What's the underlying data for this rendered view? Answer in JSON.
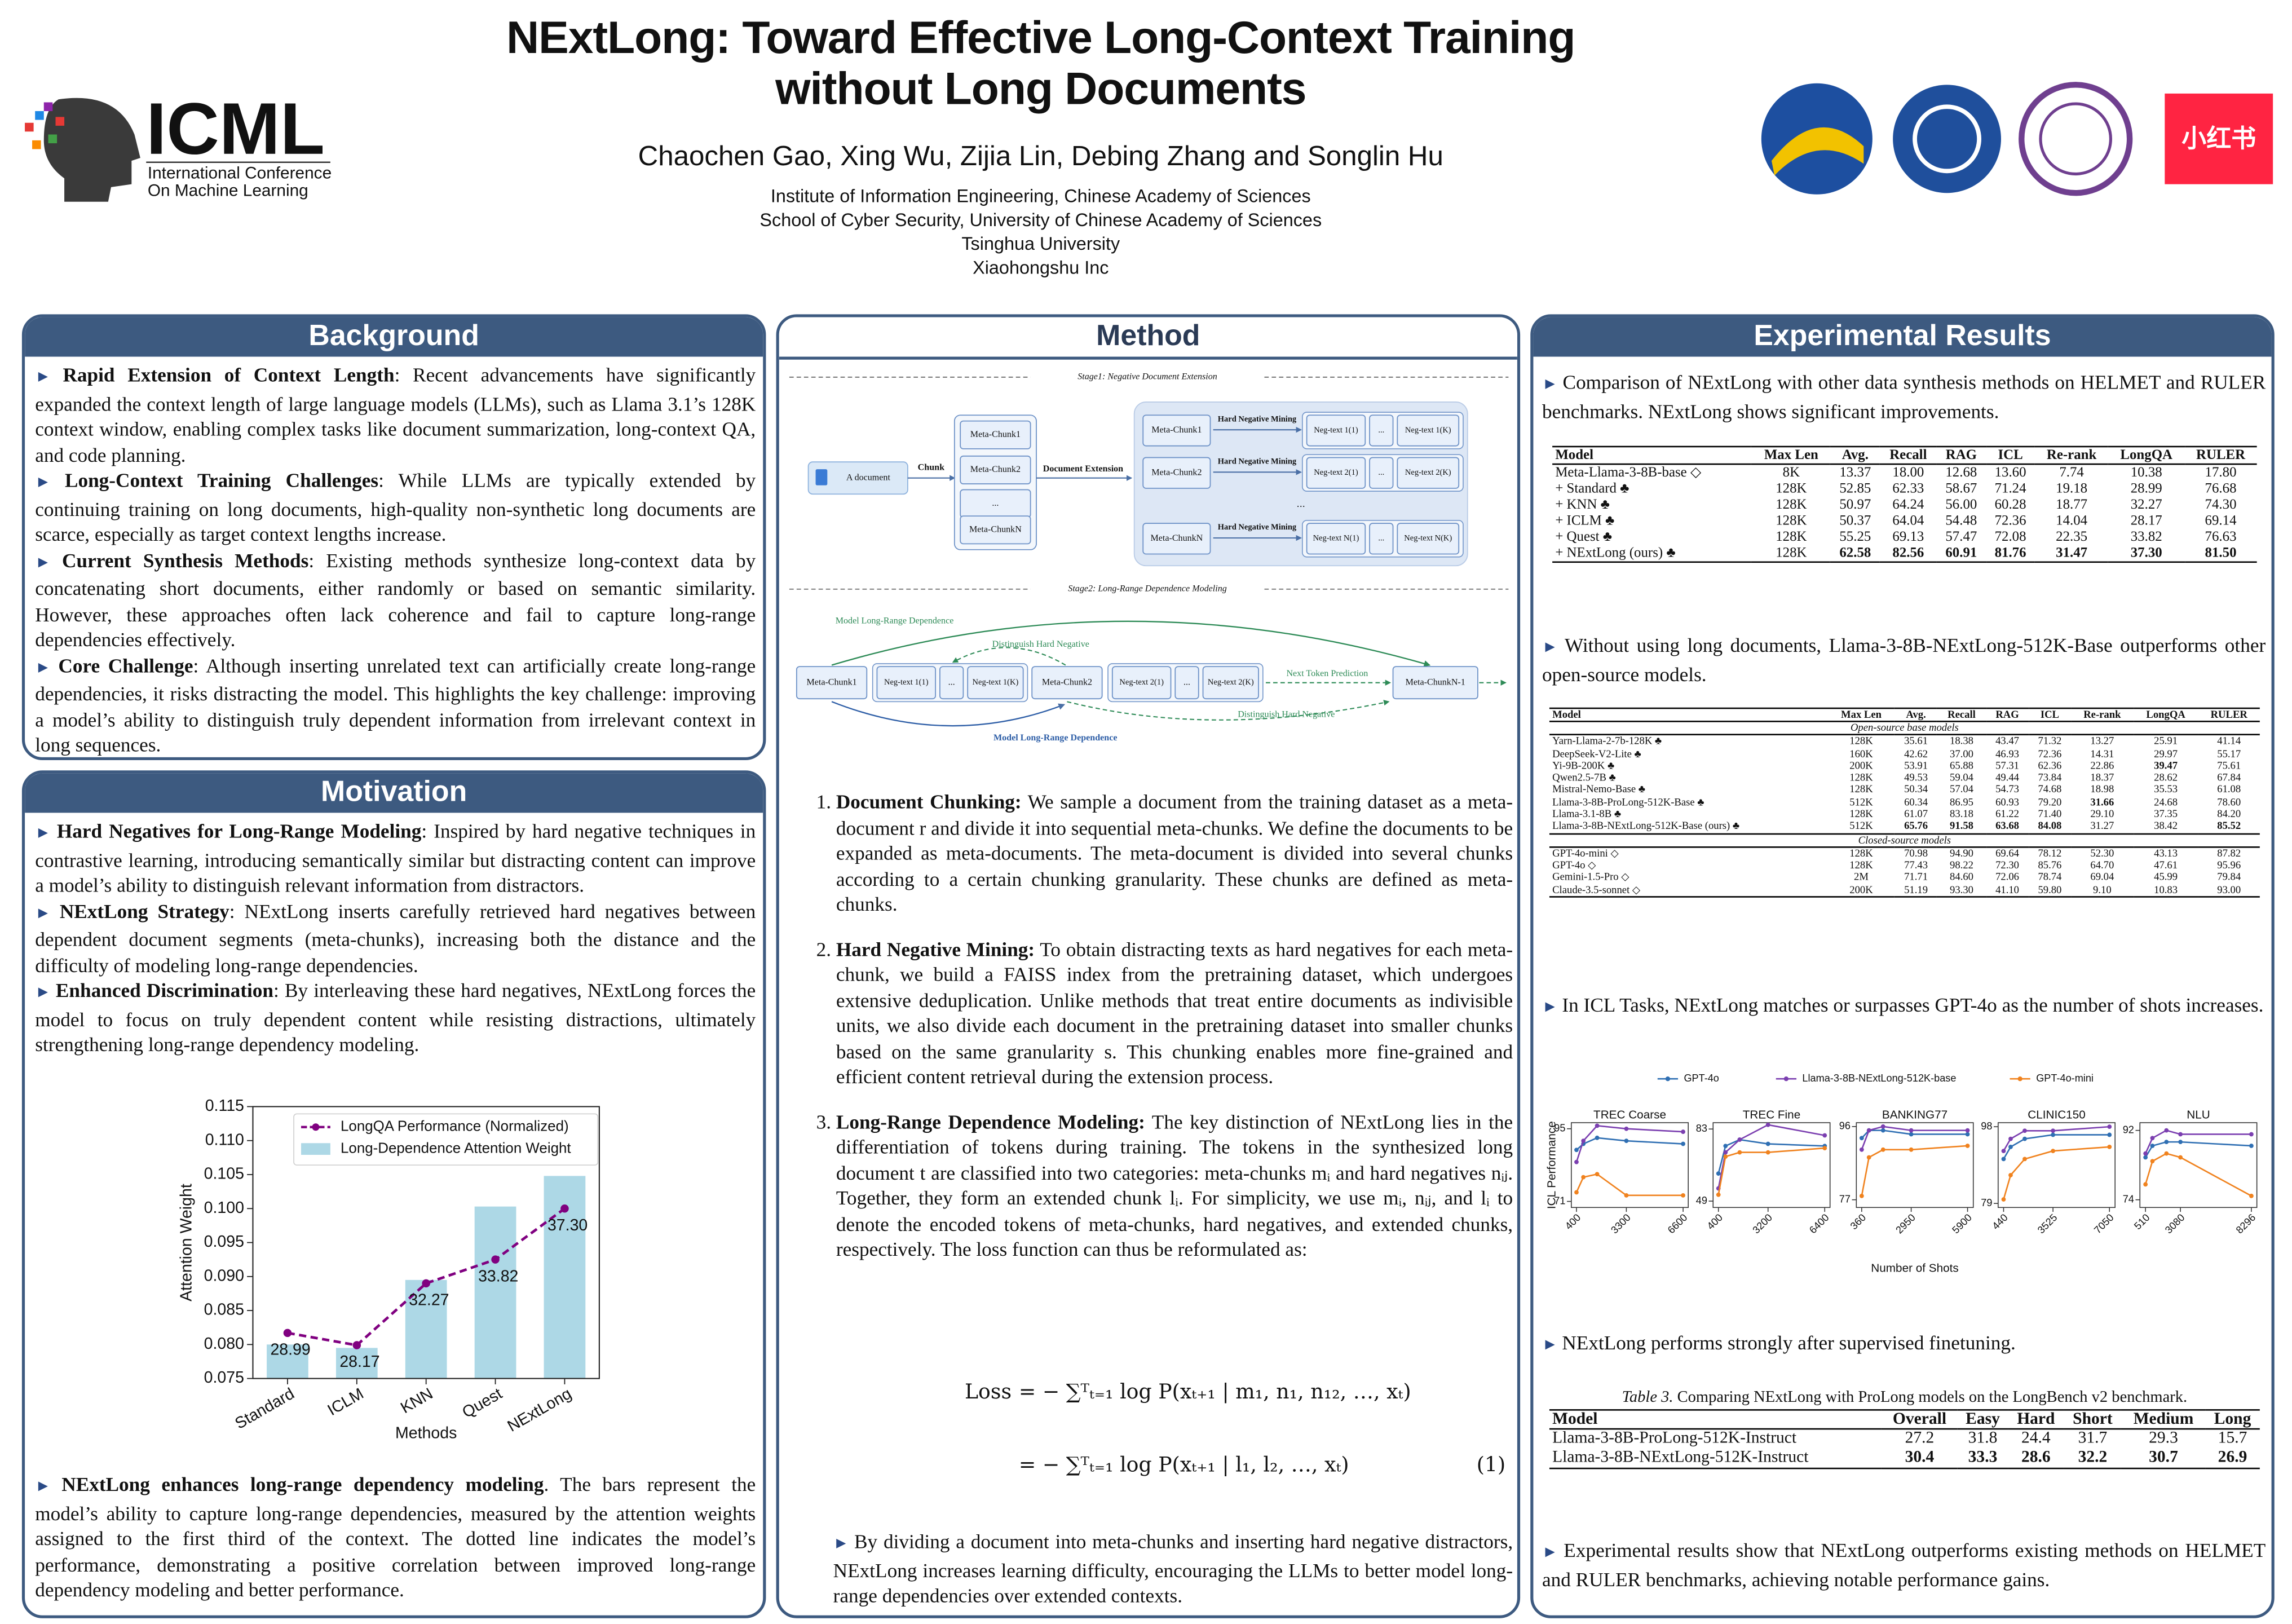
{
  "header": {
    "title_lines": [
      "NExtLong: Toward Effective Long-Context Training",
      "without Long Documents"
    ],
    "authors": "Chaochen Gao, Xing Wu, Zijia Lin, Debing Zhang and Songlin Hu",
    "affiliations": [
      "Institute of Information Engineering, Chinese Academy of Sciences",
      "School of Cyber Security, University of Chinese Academy of Sciences",
      "Tsinghua University",
      "Xiaohongshu Inc"
    ],
    "icml": {
      "name": "ICML",
      "subtitle_lines": [
        "International Conference",
        "On Machine Learning"
      ]
    },
    "logo_text": "小红书"
  },
  "background": {
    "title": "Background",
    "items": [
      {
        "lead": "Rapid Extension of Context Length",
        "text": ": Recent advancements have significantly expanded the context length of large language models (LLMs), such as Llama 3.1’s 128K context window, enabling complex tasks like document summarization, long-context QA, and code planning."
      },
      {
        "lead": "Long-Context Training Challenges",
        "text": ": While LLMs are typically extended by continuing training on long documents, high-quality non-synthetic long documents are scarce, especially as target context lengths increase."
      },
      {
        "lead": "Current Synthesis Methods",
        "text": ": Existing methods synthesize long-context data by concatenating short documents, either randomly or based on semantic similarity. However, these approaches often lack coherence and fail to capture long-range dependencies effectively."
      },
      {
        "lead": "Core Challenge",
        "text": ": Although inserting unrelated text can artificially create long-range dependencies, it risks distracting the model. This highlights the key challenge: improving a model’s ability to distinguish truly dependent information from irrelevant context in long sequences."
      }
    ]
  },
  "motivation": {
    "title": "Motivation",
    "items": [
      {
        "lead": "Hard Negatives for Long-Range Modeling",
        "text": ": Inspired by hard negative techniques in contrastive learning, introducing semantically similar but distracting content can improve a model’s ability to distinguish relevant information from distractors."
      },
      {
        "lead": "NExtLong Strategy",
        "text": ": NExtLong inserts carefully retrieved hard negatives between dependent document segments (meta-chunks), increasing both the distance and the difficulty of modeling long-range dependencies."
      },
      {
        "lead": "Enhanced Discrimination",
        "text": ": By interleaving these hard negatives, NExtLong forces the model to focus on truly dependent content while resisting distractions, ultimately strengthening long-range dependency modeling."
      }
    ],
    "closing": {
      "lead": "NExtLong enhances long-range dependency modeling",
      "text": ". The bars represent the model’s ability to capture long-range dependencies, measured by the attention weights assigned to the first third of the context. The dotted line indicates the model’s performance, demonstrating a positive correlation between improved long-range dependency modeling and better performance."
    }
  },
  "method": {
    "title": "Method",
    "figure": {
      "stage1": "Stage1: Negative Document Extension",
      "document": "A document",
      "chunk": "Chunk",
      "meta_chunks": [
        "Meta-Chunk1",
        "Meta-Chunk2",
        "...",
        "Meta-ChunkN"
      ],
      "extension": "Document Extension",
      "rows": [
        {
          "meta": "Meta-Chunk1",
          "mining": "Hard Negative Mining",
          "negs": [
            "Neg-text 1(1)",
            "...",
            "Neg-text 1(K)"
          ]
        },
        {
          "meta": "Meta-Chunk2",
          "mining": "Hard Negative Mining",
          "negs": [
            "Neg-text 2(1)",
            "...",
            "Neg-text 2(K)"
          ]
        },
        {
          "meta": "Meta-ChunkN",
          "mining": "Hard Negative Mining",
          "negs": [
            "Neg-text N(1)",
            "...",
            "Neg-text N(K)"
          ]
        }
      ],
      "rows_ellipsis": "...",
      "stage2": "Stage2: Long-Range Dependence Modeling",
      "sequence": [
        "Meta-Chunk1",
        "Neg-text 1(1)",
        "...",
        "Neg-text 1(K)",
        "Meta-Chunk2",
        "Neg-text 2(1)",
        "...",
        "Neg-text 2(K)",
        "Meta-ChunkN-1"
      ],
      "long_dep_top": "Model Long-Range Dependence",
      "distinguish_top": "Distinguish Hard Negative",
      "next_token": "Next Token Prediction",
      "distinguish_bottom": "Distinguish Hard Negative",
      "long_dep_bottom": "Model Long-Range Dependence"
    },
    "steps": [
      {
        "lead": "Document Chunking:",
        "text": " We sample a document from the training dataset as a meta-document r and divide it into sequential meta-chunks. We define the documents to be expanded as meta-documents. The meta-document is divided into several chunks according to a certain chunking granularity. These chunks are defined as meta-chunks."
      },
      {
        "lead": "Hard Negative Mining:",
        "text": " To obtain distracting texts as hard negatives for each meta-chunk, we build a FAISS index from the pretraining dataset, which undergoes extensive deduplication. Unlike methods that treat entire documents as indivisible units, we also divide each document in the pretraining dataset into smaller chunks based on the same granularity s. This chunking enables more fine-grained and efficient content retrieval during the extension process."
      },
      {
        "lead": "Long-Range Dependence Modeling:",
        "text": " The key distinction of NExtLong lies in the differentiation of tokens during training. The tokens in the synthesized long document t are classified into two categories: meta-chunks mᵢ and hard negatives nᵢⱼ. Together, they form an extended chunk lᵢ. For simplicity, we use mᵢ, nᵢⱼ, and lᵢ to denote the encoded tokens of meta-chunks, hard negatives, and extended chunks, respectively. The loss function can thus be reformulated as:"
      }
    ],
    "equation": {
      "lhs": "Loss",
      "rhs": [
        "= − ∑ᵀₜ₌₁ log P(xₜ₊₁ | m₁, n₁, n₁₂, …, xₜ)",
        "= − ∑ᵀₜ₌₁ log P(xₜ₊₁ | l₁, l₂, …, xₜ)"
      ],
      "number": "(1)"
    },
    "closing": "By dividing a document into meta-chunks and inserting hard negative distractors, NExtLong increases learning difficulty, encouraging the LLMs to better model long-range dependencies over extended contexts."
  },
  "results": {
    "title": "Experimental Results",
    "paragraphs": [
      "Comparison of NExtLong with other data synthesis methods on HELMET and RULER benchmarks. NExtLong shows significant improvements.",
      "Without using long documents, Llama-3-8B-NExtLong-512K-Base outperforms other open-source models.",
      "In ICL Tasks, NExtLong matches or surpasses GPT-4o as the number of shots increases.",
      "NExtLong performs strongly after supervised finetuning.",
      "Experimental results show that NExtLong outperforms existing methods on HELMET and RULER benchmarks, achieving notable performance gains."
    ],
    "table1": {
      "header": [
        "Model",
        "Max Len",
        "Avg.",
        "Recall",
        "RAG",
        "ICL",
        "Re-rank",
        "LongQA",
        "RULER"
      ],
      "rows": [
        [
          "Meta-Llama-3-8B-base ◇",
          "8K",
          "13.37",
          "18.00",
          "12.68",
          "13.60",
          "7.74",
          "10.38",
          "17.80"
        ],
        [
          "+ Standard ♣",
          "128K",
          "52.85",
          "62.33",
          "58.67",
          "71.24",
          "19.18",
          "28.99",
          "76.68"
        ],
        [
          "+ KNN ♣",
          "128K",
          "50.97",
          "64.24",
          "56.00",
          "60.28",
          "18.77",
          "32.27",
          "74.30"
        ],
        [
          "+ ICLM ♣",
          "128K",
          "50.37",
          "64.04",
          "54.48",
          "72.36",
          "14.04",
          "28.17",
          "69.14"
        ],
        [
          "+ Quest ♣",
          "128K",
          "55.25",
          "69.13",
          "57.47",
          "72.08",
          "22.35",
          "33.82",
          "76.63"
        ],
        [
          "+ NExtLong (ours) ♣",
          "128K",
          "62.58",
          "82.56",
          "60.91",
          "81.76",
          "31.47",
          "37.30",
          "81.50"
        ]
      ],
      "bold": [
        [
          5,
          2
        ],
        [
          5,
          3
        ],
        [
          5,
          4
        ],
        [
          5,
          5
        ],
        [
          5,
          6
        ],
        [
          5,
          7
        ],
        [
          5,
          8
        ]
      ]
    },
    "table2": {
      "header": [
        "Model",
        "Max Len",
        "Avg.",
        "Recall",
        "RAG",
        "ICL",
        "Re-rank",
        "LongQA",
        "RULER"
      ],
      "groups": [
        {
          "label": "Open-source base models",
          "rows": [
            [
              "Yarn-Llama-2-7b-128K ♣",
              "128K",
              "35.61",
              "18.38",
              "43.47",
              "71.32",
              "13.27",
              "25.91",
              "41.14"
            ],
            [
              "DeepSeek-V2-Lite ♣",
              "160K",
              "42.62",
              "37.00",
              "46.93",
              "72.36",
              "14.31",
              "29.97",
              "55.17"
            ],
            [
              "Yi-9B-200K ♣",
              "200K",
              "53.91",
              "65.88",
              "57.31",
              "62.36",
              "22.86",
              "39.47",
              "75.61"
            ],
            [
              "Qwen2.5-7B ♣",
              "128K",
              "49.53",
              "59.04",
              "49.44",
              "73.84",
              "18.37",
              "28.62",
              "67.84"
            ],
            [
              "Mistral-Nemo-Base ♣",
              "128K",
              "50.34",
              "57.04",
              "54.73",
              "74.68",
              "18.98",
              "35.53",
              "61.08"
            ],
            [
              "Llama-3-8B-ProLong-512K-Base ♣",
              "512K",
              "60.34",
              "86.95",
              "60.93",
              "79.20",
              "31.66",
              "24.68",
              "78.60"
            ],
            [
              "Llama-3.1-8B ♣",
              "128K",
              "61.07",
              "83.18",
              "61.22",
              "71.40",
              "29.10",
              "37.35",
              "84.20"
            ],
            [
              "Llama-3-8B-NExtLong-512K-Base (ours) ♣",
              "512K",
              "65.76",
              "91.58",
              "63.68",
              "84.08",
              "31.27",
              "38.42",
              "85.52"
            ]
          ]
        },
        {
          "label": "Closed-source models",
          "rows": [
            [
              "GPT-4o-mini ◇",
              "128K",
              "70.98",
              "94.90",
              "69.64",
              "78.12",
              "52.30",
              "43.13",
              "87.82"
            ],
            [
              "GPT-4o ◇",
              "128K",
              "77.43",
              "98.22",
              "72.30",
              "85.76",
              "64.70",
              "47.61",
              "95.96"
            ],
            [
              "Gemini-1.5-Pro ◇",
              "2M",
              "71.71",
              "84.60",
              "72.06",
              "78.74",
              "69.04",
              "45.99",
              "79.84"
            ],
            [
              "Claude-3.5-sonnet ◇",
              "200K",
              "51.19",
              "93.30",
              "41.10",
              "59.80",
              "9.10",
              "10.83",
              "93.00"
            ]
          ]
        }
      ],
      "bold": [
        [
          0,
          2,
          7
        ],
        [
          0,
          5,
          6
        ],
        [
          0,
          7,
          2
        ],
        [
          0,
          7,
          3
        ],
        [
          0,
          7,
          4
        ],
        [
          0,
          7,
          5
        ],
        [
          0,
          7,
          8
        ]
      ]
    },
    "table3": {
      "caption_label": "Table 3.",
      "caption_text": "Comparing NExtLong with ProLong models on the LongBench v2 benchmark.",
      "header": [
        "Model",
        "Overall",
        "Easy",
        "Hard",
        "Short",
        "Medium",
        "Long"
      ],
      "rows": [
        [
          "Llama-3-8B-ProLong-512K-Instruct",
          "27.2",
          "31.8",
          "24.4",
          "31.7",
          "29.3",
          "15.7"
        ],
        [
          "Llama-3-8B-NExtLong-512K-Instruct",
          "30.4",
          "33.3",
          "28.6",
          "32.2",
          "30.7",
          "26.9"
        ]
      ],
      "bold": [
        [
          1,
          1
        ],
        [
          1,
          2
        ],
        [
          1,
          3
        ],
        [
          1,
          4
        ],
        [
          1,
          5
        ],
        [
          1,
          6
        ]
      ]
    }
  },
  "chart_data": [
    {
      "type": "bar",
      "xlabel": "Methods",
      "ylabel": "Attention Weight",
      "categories": [
        "Standard",
        "ICLM",
        "KNN",
        "Quest",
        "NExtLong"
      ],
      "ylim": [
        0.075,
        0.115
      ],
      "yticks": [
        0.075,
        {
          "value": 0.08,
          "label": "0.080"
        },
        0.085,
        {
          "value": 0.09,
          "label": "0.090"
        },
        0.095,
        {
          "value": 0.1,
          "label": "0.100"
        },
        0.105,
        {
          "value": 0.11,
          "label": "0.110"
        },
        0.115
      ],
      "series": [
        {
          "name": "LongQA Performance (Normalized)",
          "type": "line",
          "color": "#800080",
          "values": [
            0.0817,
            0.0799,
            0.089,
            0.0925,
            0.1
          ],
          "annotations": [
            "28.99",
            "28.17",
            "32.27",
            "33.82",
            "37.30"
          ]
        },
        {
          "name": "Long-Dependence Attention Weight",
          "type": "bar",
          "color": "#add8e6",
          "values": [
            0.08,
            0.0795,
            0.0895,
            0.1003,
            0.1048
          ]
        }
      ],
      "legend": "upper left"
    },
    {
      "type": "line",
      "xlabel": "Number of Shots",
      "ylabel": "ICL Performance",
      "series": [
        {
          "name": "GPT-4o",
          "color": "#2f6fb3"
        },
        {
          "name": "Llama-3-8B-NExtLong-512K-base",
          "color": "#7b3fb0"
        },
        {
          "name": "GPT-4o-mini",
          "color": "#f0821e"
        }
      ],
      "subplots": [
        {
          "title": "TREC Coarse",
          "x": [
            400,
            800,
            1600,
            3300,
            6600
          ],
          "xlim": [
            100,
            6900
          ],
          "xticks": [
            400,
            3300,
            6600
          ],
          "ylim": [
            69,
            97
          ],
          "yticks": [
            71,
            95
          ],
          "values": [
            [
              88,
              90,
              92,
              91,
              90
            ],
            [
              84,
              91,
              96,
              95,
              94
            ],
            [
              74,
              79,
              80,
              73,
              73
            ]
          ]
        },
        {
          "title": "TREC Fine",
          "x": [
            400,
            800,
            1600,
            3200,
            6400
          ],
          "xlim": [
            100,
            6700
          ],
          "xticks": [
            400,
            3200,
            6400
          ],
          "ylim": [
            46,
            86
          ],
          "yticks": [
            49,
            83
          ],
          "values": [
            [
              62,
              75,
              78,
              76,
              75
            ],
            [
              55,
              72,
              78,
              85,
              80
            ],
            [
              52,
              70,
              72,
              72,
              74
            ]
          ]
        },
        {
          "title": "BANKING77",
          "x": [
            360,
            740,
            1480,
            2950,
            5900
          ],
          "xlim": [
            80,
            6200
          ],
          "xticks": [
            360,
            2950,
            5900
          ],
          "ylim": [
            75,
            97
          ],
          "yticks": [
            77,
            96
          ],
          "values": [
            [
              93,
              95,
              95,
              94,
              94
            ],
            [
              90,
              95,
              96,
              95,
              95
            ],
            [
              78,
              88,
              90,
              90,
              91
            ]
          ]
        },
        {
          "title": "CLINIC150",
          "x": [
            440,
            880,
            1760,
            3525,
            7050
          ],
          "xlim": [
            100,
            7400
          ],
          "xticks": [
            440,
            3525,
            7050
          ],
          "ylim": [
            78,
            99
          ],
          "yticks": [
            79,
            98
          ],
          "values": [
            [
              90,
              93,
              95,
              96,
              96
            ],
            [
              92,
              95,
              97,
              97,
              98
            ],
            [
              80,
              86,
              90,
              92,
              93
            ]
          ]
        },
        {
          "title": "NLU",
          "x": [
            510,
            1020,
            2050,
            3080,
            8296
          ],
          "xlim": [
            100,
            8700
          ],
          "xticks": [
            510,
            3080,
            8296
          ],
          "ylim": [
            72,
            94
          ],
          "yticks": [
            74,
            92
          ],
          "values": [
            [
              85,
              88,
              89,
              89,
              88
            ],
            [
              86,
              90,
              92,
              91,
              91
            ],
            [
              78,
              84,
              86,
              85,
              75
            ]
          ]
        }
      ]
    }
  ]
}
